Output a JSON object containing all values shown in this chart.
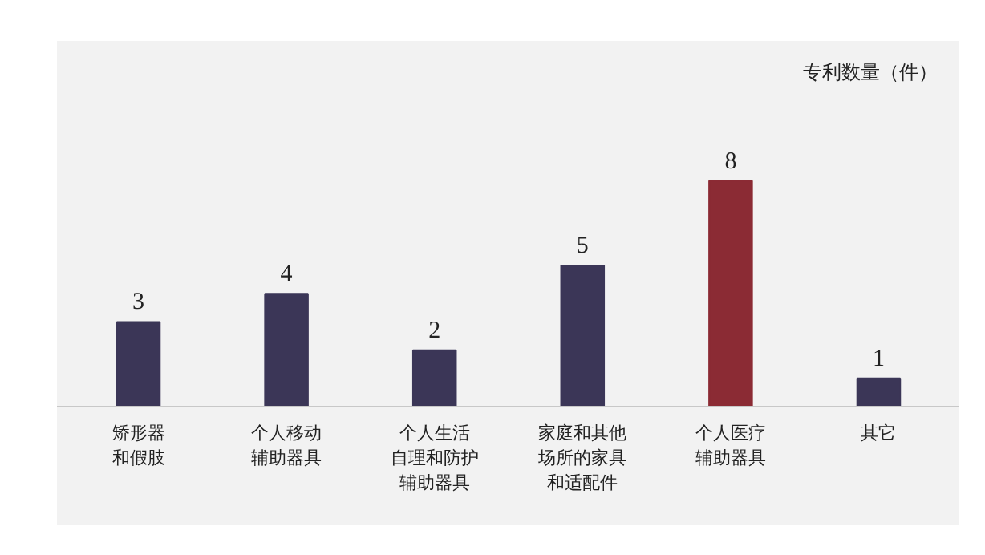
{
  "chart_data": {
    "type": "bar",
    "annotations": [
      "专利数量（件）"
    ],
    "categories": [
      "矫形器和假肢",
      "个人移动辅助器具",
      "个人生活自理和防护辅助器具",
      "家庭和其他场所的家具和适配件",
      "个人医疗辅助器具",
      "其它"
    ],
    "values": [
      3,
      4,
      2,
      5,
      8,
      1
    ],
    "colors": [
      "#3b3657",
      "#3b3657",
      "#3b3657",
      "#3b3657",
      "#8b2b34",
      "#3b3657"
    ],
    "data_labels": true,
    "grid": false
  }
}
